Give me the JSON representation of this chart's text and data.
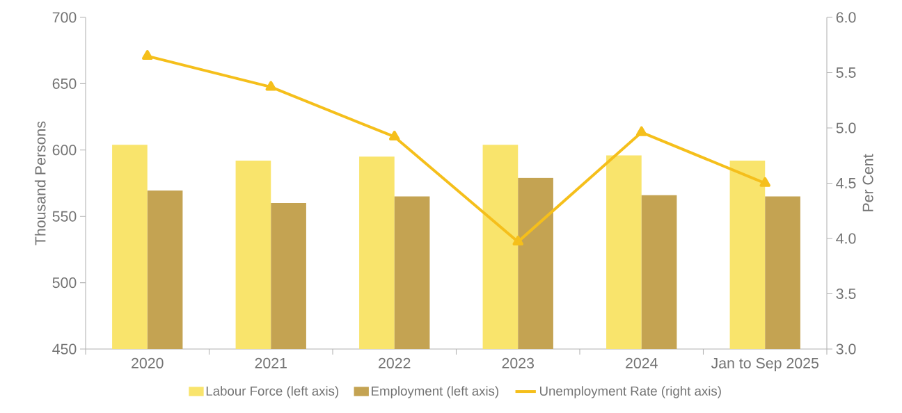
{
  "chart_data": {
    "type": "bar",
    "categories": [
      "2020",
      "2021",
      "2022",
      "2023",
      "2024",
      "Jan to Sep 2025"
    ],
    "ylabel": "Thousand Persons",
    "y2label": "Per Cent",
    "ylim": [
      450,
      700
    ],
    "yticks": [
      450,
      500,
      550,
      600,
      650,
      700
    ],
    "y2lim": [
      3,
      6
    ],
    "y2ticks": [
      {
        "value": 3,
        "label": "3.0"
      },
      3.5,
      {
        "value": 4,
        "label": "4.0"
      },
      4.5,
      {
        "value": 5,
        "label": "5.0"
      },
      5.5,
      {
        "value": 6,
        "label": "6.0"
      }
    ],
    "legend": "bottom",
    "marker": "triangle",
    "series": [
      {
        "name": "Labour Force (left axis)",
        "color": "#f9e46c",
        "values": [
          604,
          592,
          595,
          604,
          596,
          592
        ]
      },
      {
        "name": "Employment (left axis)",
        "color": "#c4a352",
        "values": [
          569.5,
          560,
          565,
          579,
          566,
          565
        ]
      },
      {
        "name": "Unemployment Rate (right axis)",
        "type": "line",
        "axis": "y2",
        "color": "#f5bf1b",
        "values": [
          5.65,
          5.37,
          4.92,
          3.97,
          4.96,
          4.5
        ]
      }
    ]
  }
}
